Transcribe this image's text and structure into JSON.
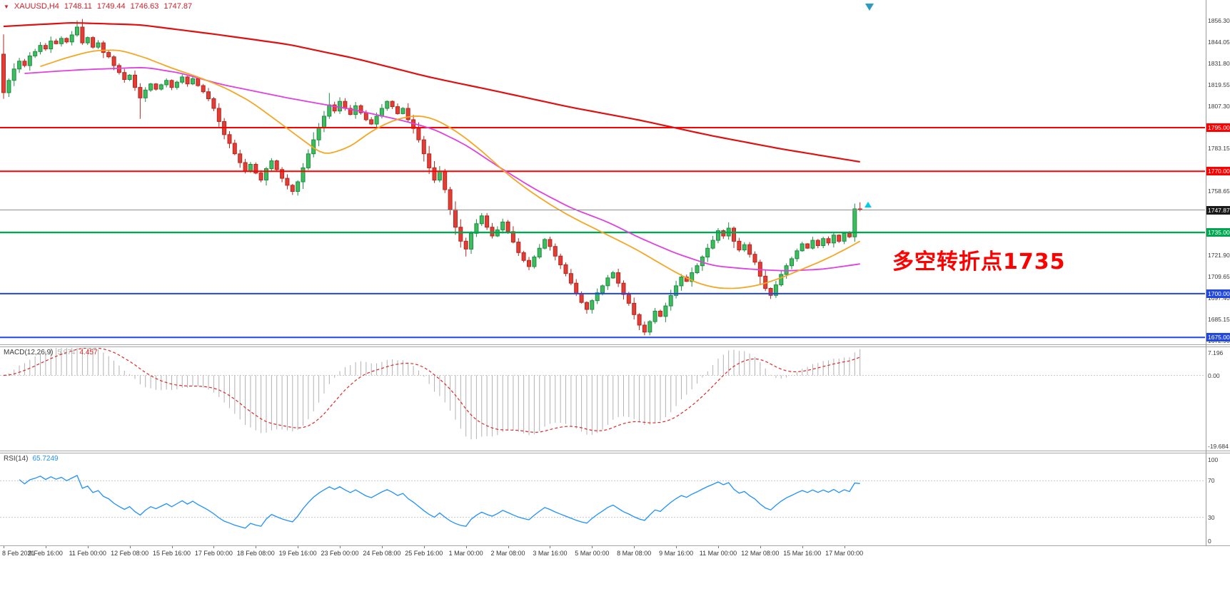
{
  "header": {
    "marker": "▼",
    "symbol": "XAUUSD,H4",
    "open": "1748.11",
    "high": "1749.44",
    "low": "1746.63",
    "close": "1747.87"
  },
  "annotation": {
    "text": "多空转折点1735",
    "color": "#ff0000"
  },
  "colors": {
    "header_text": "#ce2029",
    "macd_hist": "#b2b2b2",
    "macd_signal": "#e02828",
    "rsi_line": "#1e90ff",
    "shift_marker": "#2a9bc4",
    "ask_marker": "#00cdee",
    "current_price_line": "#909090",
    "current_price_badge": "#1a1a1a"
  },
  "indicators": {
    "macd": {
      "label": "MACD(12,26,9)",
      "value_main": "5.974",
      "value_signal": "4.457",
      "axis_labels": [
        {
          "value": 7.196,
          "text": "7.196"
        },
        {
          "value": 0,
          "text": "0.00"
        },
        {
          "value": -19.684,
          "text": "-19.684"
        }
      ]
    },
    "rsi": {
      "label": "RSI(14)",
      "value": "65.7249",
      "axis_labels": [
        {
          "value": 100,
          "text": "100"
        },
        {
          "value": 70,
          "text": "70"
        },
        {
          "value": 30,
          "text": "30"
        },
        {
          "value": 0,
          "text": "0"
        }
      ]
    }
  },
  "chart_data": {
    "type": "candlestick",
    "symbol": "XAUUSD",
    "timeframe": "H4",
    "last_quote": {
      "open": 1748.11,
      "high": 1749.44,
      "low": 1746.63,
      "close": 1747.87
    },
    "current_price": 1747.87,
    "current_price_label": "1747.87",
    "price_axis_range": [
      1671,
      1868
    ],
    "price_axis_ticks": [
      {
        "value": 1856.3,
        "text": "1856.30"
      },
      {
        "value": 1844.05,
        "text": "1844.05"
      },
      {
        "value": 1831.8,
        "text": "1831.80"
      },
      {
        "value": 1819.55,
        "text": "1819.55"
      },
      {
        "value": 1807.3,
        "text": "1807.30"
      },
      {
        "value": 1783.15,
        "text": "1783.15"
      },
      {
        "value": 1758.65,
        "text": "1758.65"
      },
      {
        "value": 1721.9,
        "text": "1721.90"
      },
      {
        "value": 1709.65,
        "text": "1709.65"
      },
      {
        "value": 1697.4,
        "text": "1697.40"
      },
      {
        "value": 1685.15,
        "text": "1685.15"
      },
      {
        "value": 1672.9,
        "text": "1672.90"
      }
    ],
    "horizontal_levels": [
      {
        "price": 1795.0,
        "label": "1795.00",
        "color": "#ff0000",
        "width": 2
      },
      {
        "price": 1770.0,
        "label": "1770.00",
        "color": "#ff0000",
        "width": 2
      },
      {
        "price": 1735.0,
        "label": "1735.00",
        "color": "#00a650",
        "width": 2.4
      },
      {
        "price": 1700.0,
        "label": "1700.00",
        "color": "#2048e0",
        "width": 2
      },
      {
        "price": 1675.0,
        "label": "1675.00",
        "color": "#2048e0",
        "width": 2
      }
    ],
    "candle_colors": {
      "up": "#3dbd5d",
      "up_border": "#1e8c42",
      "down": "#e23e36",
      "down_border": "#b5271f"
    },
    "first_open": 1837,
    "closes": [
      1815.0,
      1822.0,
      1828.5,
      1833.0,
      1830.5,
      1836.0,
      1838.5,
      1842.0,
      1840.0,
      1844.5,
      1843.0,
      1846.0,
      1844.0,
      1848.0,
      1852.5,
      1843.5,
      1846.5,
      1841.0,
      1843.5,
      1838.0,
      1835.5,
      1830.5,
      1826.5,
      1822.5,
      1825.0,
      1818.0,
      1812.0,
      1816.5,
      1820.0,
      1817.0,
      1819.5,
      1822.0,
      1818.0,
      1821.0,
      1824.0,
      1820.0,
      1823.0,
      1819.0,
      1815.5,
      1811.5,
      1806.0,
      1798.5,
      1791.0,
      1786.0,
      1780.0,
      1775.0,
      1770.0,
      1774.0,
      1769.0,
      1765.0,
      1771.5,
      1776.0,
      1771.0,
      1766.0,
      1762.0,
      1758.5,
      1764.0,
      1772.0,
      1780.0,
      1788.0,
      1795.0,
      1801.5,
      1808.0,
      1804.5,
      1810.0,
      1806.0,
      1802.5,
      1807.5,
      1803.5,
      1799.5,
      1797.0,
      1801.5,
      1806.0,
      1810.0,
      1807.0,
      1803.0,
      1806.0,
      1799.5,
      1794.5,
      1788.0,
      1780.0,
      1772.0,
      1765.0,
      1770.0,
      1759.5,
      1748.0,
      1738.0,
      1730.0,
      1725.5,
      1734.5,
      1740.0,
      1744.5,
      1738.0,
      1733.0,
      1736.5,
      1741.0,
      1735.5,
      1729.5,
      1723.5,
      1719.0,
      1715.5,
      1721.0,
      1726.0,
      1731.0,
      1727.0,
      1721.5,
      1716.5,
      1711.5,
      1706.0,
      1700.0,
      1695.0,
      1691.0,
      1696.0,
      1700.5,
      1704.5,
      1709.0,
      1712.0,
      1706.0,
      1699.5,
      1694.5,
      1688.0,
      1682.0,
      1678.0,
      1684.0,
      1690.0,
      1687.0,
      1693.0,
      1699.0,
      1704.5,
      1709.5,
      1707.0,
      1712.0,
      1716.0,
      1721.0,
      1726.0,
      1730.5,
      1736.0,
      1733.0,
      1737.5,
      1730.0,
      1725.0,
      1728.0,
      1722.5,
      1718.0,
      1710.0,
      1703.0,
      1699.0,
      1705.0,
      1711.0,
      1716.0,
      1720.0,
      1724.5,
      1728.5,
      1726.0,
      1730.5,
      1727.5,
      1731.5,
      1729.0,
      1733.5,
      1730.0,
      1734.5,
      1732.5,
      1748.5,
      1747.87
    ],
    "wick_overrides": {
      "14": {
        "high": 1856.3
      },
      "26": {
        "low": 1800.0
      },
      "55": {
        "low": 1756.5
      },
      "62": {
        "high": 1814.8
      },
      "88": {
        "low": 1721.3
      },
      "111": {
        "low": 1688.5
      },
      "122": {
        "low": 1676.2
      },
      "138": {
        "high": 1740.8
      },
      "146": {
        "low": 1697.0
      },
      "162": {
        "high": 1751.5
      },
      "163": {
        "high": 1752.3
      }
    },
    "moving_averages": [
      {
        "name": "ma-slow-red",
        "color": "#e01010",
        "width": 2.2,
        "anchors": [
          [
            0,
            1852.9
          ],
          [
            13,
            1855.0
          ],
          [
            26,
            1853.8
          ],
          [
            40,
            1848.5
          ],
          [
            54,
            1842.7
          ],
          [
            67,
            1834.5
          ],
          [
            81,
            1823.9
          ],
          [
            94,
            1815.7
          ],
          [
            108,
            1806.6
          ],
          [
            121,
            1799.3
          ],
          [
            135,
            1790.2
          ],
          [
            148,
            1782.8
          ],
          [
            163,
            1775.4
          ]
        ]
      },
      {
        "name": "ma-medium-magenta",
        "color": "#e040e0",
        "width": 1.8,
        "anchors": [
          [
            4,
            1826
          ],
          [
            14,
            1828
          ],
          [
            27,
            1829.5
          ],
          [
            34,
            1826
          ],
          [
            41,
            1820
          ],
          [
            54,
            1812
          ],
          [
            67,
            1805
          ],
          [
            76,
            1799
          ],
          [
            82,
            1794
          ],
          [
            88,
            1785
          ],
          [
            94,
            1773
          ],
          [
            101,
            1760
          ],
          [
            108,
            1749
          ],
          [
            115,
            1741
          ],
          [
            121,
            1732
          ],
          [
            128,
            1723
          ],
          [
            135,
            1716
          ],
          [
            142,
            1714
          ],
          [
            149,
            1713
          ],
          [
            156,
            1714
          ],
          [
            163,
            1717
          ]
        ]
      },
      {
        "name": "ma-fast-orange",
        "color": "#f5a623",
        "width": 1.8,
        "anchors": [
          [
            7,
            1830
          ],
          [
            12,
            1835
          ],
          [
            17,
            1839
          ],
          [
            22,
            1839.5
          ],
          [
            27,
            1835
          ],
          [
            32,
            1829
          ],
          [
            37,
            1824
          ],
          [
            42,
            1818
          ],
          [
            47,
            1810
          ],
          [
            52,
            1799
          ],
          [
            56,
            1790
          ],
          [
            61,
            1779
          ],
          [
            66,
            1784
          ],
          [
            70,
            1793
          ],
          [
            74,
            1799
          ],
          [
            78,
            1802
          ],
          [
            81,
            1801
          ],
          [
            84,
            1797
          ],
          [
            88,
            1789
          ],
          [
            92,
            1779
          ],
          [
            96,
            1768
          ],
          [
            100,
            1759
          ],
          [
            104,
            1751
          ],
          [
            108,
            1744
          ],
          [
            112,
            1738
          ],
          [
            116,
            1732
          ],
          [
            120,
            1726
          ],
          [
            124,
            1719
          ],
          [
            128,
            1712
          ],
          [
            132,
            1706
          ],
          [
            136,
            1703
          ],
          [
            140,
            1703
          ],
          [
            144,
            1705
          ],
          [
            148,
            1709
          ],
          [
            152,
            1714
          ],
          [
            156,
            1719
          ],
          [
            160,
            1725
          ],
          [
            163,
            1730
          ]
        ]
      }
    ],
    "macd": {
      "params": "12,26,9",
      "axis": {
        "max": 7.196,
        "min": -19.684
      },
      "derived_from": "closes"
    },
    "rsi": {
      "period": 14,
      "levels": [
        70,
        30
      ],
      "derived_from": "closes"
    },
    "time_labels": [
      "8 Feb 2021",
      "9 Feb 16:00",
      "11 Feb 00:00",
      "12 Feb 08:00",
      "15 Feb 16:00",
      "17 Feb 00:00",
      "18 Feb 08:00",
      "19 Feb 16:00",
      "23 Feb 00:00",
      "24 Feb 08:00",
      "25 Feb 16:00",
      "1 Mar 00:00",
      "2 Mar 08:00",
      "3 Mar 16:00",
      "5 Mar 00:00",
      "8 Mar 08:00",
      "9 Mar 16:00",
      "11 Mar 00:00",
      "12 Mar 08:00",
      "15 Mar 16:00",
      "17 Mar 00:00"
    ]
  }
}
